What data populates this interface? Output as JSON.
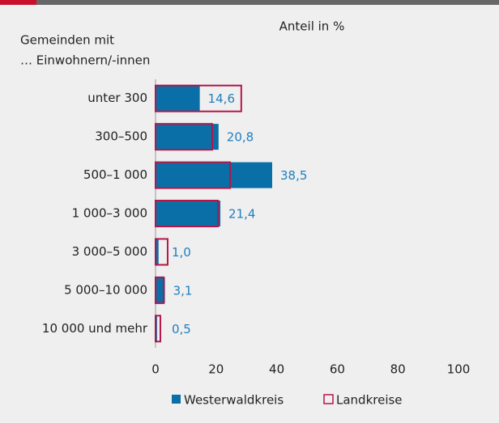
{
  "chart_data": {
    "type": "bar",
    "orientation": "horizontal",
    "title": "Anteil in %",
    "y_label": [
      "Gemeinden mit",
      "… Einwohnern/-innen"
    ],
    "categories": [
      "unter 300",
      "300–500",
      "500–1 000",
      "1 000–3 000",
      "3 000–5 000",
      "5 000–10 000",
      "10 000 und mehr"
    ],
    "series": [
      {
        "name": "Westerwaldkreis",
        "color": "#0a6fa6",
        "style": "filled",
        "values": [
          14.6,
          20.8,
          38.5,
          21.4,
          1.0,
          3.1,
          0.5
        ],
        "value_labels": [
          "14,6",
          "20,8",
          "38,5",
          "21,4",
          "1,0",
          "3,1",
          "0,5"
        ]
      },
      {
        "name": "Landkreise",
        "color": "#b5164a",
        "style": "outline",
        "values": [
          28.3,
          18.7,
          24.6,
          20.6,
          4.0,
          2.7,
          1.6
        ]
      }
    ],
    "label_color": "#1f7fbf",
    "xlim": [
      0,
      100
    ],
    "xticks": [
      0,
      20,
      40,
      60,
      80,
      100
    ],
    "grid": false
  }
}
